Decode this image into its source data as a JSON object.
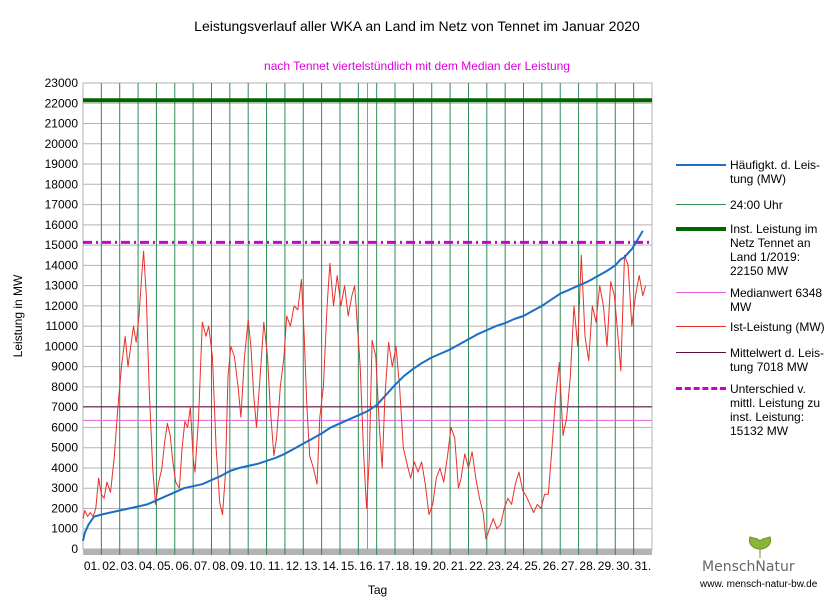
{
  "chart_data": {
    "type": "line",
    "title": "Leistungsverlauf aller WKA an Land im Netz von Tennet im Januar 2020",
    "subtitle": "nach Tennet viertelstündlich mit dem Median der Leistung",
    "xlabel": "Tag",
    "ylabel": "Leistung in MW",
    "ylim": [
      0,
      23000
    ],
    "ytick_step": 1000,
    "xlim": [
      0,
      31
    ],
    "day_labels": [
      "01.",
      "02.",
      "03.",
      "04.",
      "05.",
      "06.",
      "07.",
      "08.",
      "09.",
      "10.",
      "11.",
      "12.",
      "13.",
      "14.",
      "15.",
      "16.",
      "17.",
      "18.",
      "19.",
      "20.",
      "21.",
      "22.",
      "23.",
      "24.",
      "25.",
      "26.",
      "27.",
      "28.",
      "29.",
      "30.",
      "31."
    ],
    "reference_lines": {
      "installed_capacity": 22150,
      "difference_level": 15132,
      "mean": 7018,
      "median": 6348,
      "median_marker_day": 15.5
    },
    "series": [
      {
        "name": "Ist-Leistung (MW)",
        "color": "#e8302a",
        "points": [
          [
            0.0,
            1500
          ],
          [
            0.1,
            1900
          ],
          [
            0.25,
            1600
          ],
          [
            0.4,
            1800
          ],
          [
            0.55,
            1600
          ],
          [
            0.7,
            2000
          ],
          [
            0.85,
            3500
          ],
          [
            1.0,
            2700
          ],
          [
            1.15,
            2500
          ],
          [
            1.3,
            3300
          ],
          [
            1.5,
            2800
          ],
          [
            1.7,
            4500
          ],
          [
            1.9,
            7000
          ],
          [
            2.1,
            9000
          ],
          [
            2.3,
            10500
          ],
          [
            2.45,
            9000
          ],
          [
            2.6,
            10000
          ],
          [
            2.75,
            11000
          ],
          [
            2.9,
            10200
          ],
          [
            3.05,
            11500
          ],
          [
            3.2,
            13500
          ],
          [
            3.3,
            14700
          ],
          [
            3.45,
            12500
          ],
          [
            3.6,
            8000
          ],
          [
            3.8,
            4000
          ],
          [
            3.95,
            2200
          ],
          [
            4.1,
            3200
          ],
          [
            4.3,
            4000
          ],
          [
            4.45,
            5300
          ],
          [
            4.6,
            6200
          ],
          [
            4.75,
            5600
          ],
          [
            4.9,
            4300
          ],
          [
            5.05,
            3300
          ],
          [
            5.25,
            3000
          ],
          [
            5.4,
            5000
          ],
          [
            5.55,
            6300
          ],
          [
            5.7,
            6000
          ],
          [
            5.85,
            7000
          ],
          [
            6.0,
            4500
          ],
          [
            6.1,
            3800
          ],
          [
            6.3,
            6500
          ],
          [
            6.5,
            11200
          ],
          [
            6.7,
            10500
          ],
          [
            6.85,
            11000
          ],
          [
            7.05,
            9500
          ],
          [
            7.25,
            5000
          ],
          [
            7.45,
            2300
          ],
          [
            7.6,
            1700
          ],
          [
            7.75,
            3600
          ],
          [
            7.9,
            8500
          ],
          [
            8.05,
            10000
          ],
          [
            8.25,
            9500
          ],
          [
            8.45,
            8000
          ],
          [
            8.6,
            6500
          ],
          [
            8.8,
            9500
          ],
          [
            9.0,
            11300
          ],
          [
            9.15,
            10000
          ],
          [
            9.3,
            7600
          ],
          [
            9.45,
            6000
          ],
          [
            9.65,
            8500
          ],
          [
            9.85,
            11200
          ],
          [
            10.05,
            9500
          ],
          [
            10.2,
            7000
          ],
          [
            10.4,
            4600
          ],
          [
            10.55,
            5500
          ],
          [
            10.75,
            8000
          ],
          [
            10.95,
            9500
          ],
          [
            11.1,
            11500
          ],
          [
            11.3,
            11000
          ],
          [
            11.5,
            12000
          ],
          [
            11.7,
            11800
          ],
          [
            11.9,
            13300
          ],
          [
            12.05,
            10500
          ],
          [
            12.2,
            7000
          ],
          [
            12.35,
            4600
          ],
          [
            12.55,
            4000
          ],
          [
            12.75,
            3200
          ],
          [
            12.9,
            6500
          ],
          [
            13.1,
            8000
          ],
          [
            13.3,
            12000
          ],
          [
            13.45,
            14100
          ],
          [
            13.65,
            12000
          ],
          [
            13.85,
            13500
          ],
          [
            14.05,
            12000
          ],
          [
            14.25,
            13000
          ],
          [
            14.45,
            11500
          ],
          [
            14.65,
            12500
          ],
          [
            14.8,
            13000
          ],
          [
            14.95,
            11000
          ],
          [
            15.1,
            9000
          ],
          [
            15.3,
            4500
          ],
          [
            15.45,
            2000
          ],
          [
            15.6,
            4500
          ],
          [
            15.75,
            10300
          ],
          [
            15.95,
            9500
          ],
          [
            16.15,
            6000
          ],
          [
            16.3,
            4000
          ],
          [
            16.45,
            7500
          ],
          [
            16.65,
            10200
          ],
          [
            16.85,
            9000
          ],
          [
            17.05,
            10000
          ],
          [
            17.25,
            8000
          ],
          [
            17.45,
            5000
          ],
          [
            17.65,
            4200
          ],
          [
            17.85,
            3500
          ],
          [
            18.05,
            4300
          ],
          [
            18.25,
            3800
          ],
          [
            18.45,
            4300
          ],
          [
            18.65,
            3200
          ],
          [
            18.85,
            1700
          ],
          [
            19.05,
            2200
          ],
          [
            19.25,
            3500
          ],
          [
            19.45,
            4000
          ],
          [
            19.65,
            3300
          ],
          [
            19.85,
            4500
          ],
          [
            20.05,
            6000
          ],
          [
            20.25,
            5500
          ],
          [
            20.45,
            3000
          ],
          [
            20.6,
            3500
          ],
          [
            20.8,
            4700
          ],
          [
            21.0,
            4000
          ],
          [
            21.2,
            4800
          ],
          [
            21.4,
            3500
          ],
          [
            21.6,
            2500
          ],
          [
            21.8,
            1800
          ],
          [
            21.95,
            500
          ],
          [
            22.15,
            1000
          ],
          [
            22.35,
            1500
          ],
          [
            22.55,
            1000
          ],
          [
            22.75,
            1200
          ],
          [
            22.95,
            2000
          ],
          [
            23.15,
            2500
          ],
          [
            23.35,
            2200
          ],
          [
            23.55,
            3200
          ],
          [
            23.75,
            3800
          ],
          [
            23.95,
            2900
          ],
          [
            24.15,
            2600
          ],
          [
            24.35,
            2200
          ],
          [
            24.55,
            1800
          ],
          [
            24.75,
            2200
          ],
          [
            24.95,
            2000
          ],
          [
            25.15,
            2700
          ],
          [
            25.35,
            2700
          ],
          [
            25.55,
            5000
          ],
          [
            25.75,
            7500
          ],
          [
            25.95,
            9200
          ],
          [
            26.15,
            5600
          ],
          [
            26.35,
            6500
          ],
          [
            26.55,
            8500
          ],
          [
            26.75,
            12000
          ],
          [
            26.95,
            10000
          ],
          [
            27.15,
            14500
          ],
          [
            27.35,
            10500
          ],
          [
            27.55,
            9300
          ],
          [
            27.75,
            12000
          ],
          [
            27.95,
            11200
          ],
          [
            28.15,
            13000
          ],
          [
            28.35,
            12000
          ],
          [
            28.55,
            10000
          ],
          [
            28.75,
            13200
          ],
          [
            28.95,
            12500
          ],
          [
            29.15,
            10500
          ],
          [
            29.3,
            8800
          ],
          [
            29.5,
            14500
          ],
          [
            29.7,
            14000
          ],
          [
            29.9,
            11000
          ],
          [
            30.1,
            12500
          ],
          [
            30.3,
            13500
          ],
          [
            30.5,
            12500
          ],
          [
            30.65,
            13000
          ]
        ]
      },
      {
        "name": "Häufigkt. d. Leistung (MW)",
        "color": "#1a6fc4",
        "points": [
          [
            0.0,
            400
          ],
          [
            0.1,
            800
          ],
          [
            0.3,
            1200
          ],
          [
            0.6,
            1600
          ],
          [
            1.0,
            1700
          ],
          [
            1.5,
            1800
          ],
          [
            2.0,
            1900
          ],
          [
            2.5,
            2000
          ],
          [
            3.0,
            2100
          ],
          [
            3.5,
            2200
          ],
          [
            4.0,
            2400
          ],
          [
            4.5,
            2600
          ],
          [
            5.0,
            2800
          ],
          [
            5.5,
            3000
          ],
          [
            6.0,
            3100
          ],
          [
            6.5,
            3200
          ],
          [
            7.0,
            3400
          ],
          [
            7.5,
            3600
          ],
          [
            8.0,
            3850
          ],
          [
            8.5,
            4000
          ],
          [
            9.0,
            4100
          ],
          [
            9.5,
            4200
          ],
          [
            10.0,
            4350
          ],
          [
            10.5,
            4500
          ],
          [
            11.0,
            4700
          ],
          [
            11.5,
            4950
          ],
          [
            12.0,
            5200
          ],
          [
            12.5,
            5450
          ],
          [
            13.0,
            5700
          ],
          [
            13.5,
            6000
          ],
          [
            14.0,
            6200
          ],
          [
            14.5,
            6400
          ],
          [
            15.0,
            6600
          ],
          [
            15.5,
            6800
          ],
          [
            16.0,
            7100
          ],
          [
            16.5,
            7600
          ],
          [
            17.0,
            8100
          ],
          [
            17.5,
            8550
          ],
          [
            18.0,
            8900
          ],
          [
            18.5,
            9200
          ],
          [
            19.0,
            9450
          ],
          [
            19.5,
            9650
          ],
          [
            20.0,
            9850
          ],
          [
            20.5,
            10100
          ],
          [
            21.0,
            10350
          ],
          [
            21.5,
            10600
          ],
          [
            22.0,
            10800
          ],
          [
            22.5,
            11000
          ],
          [
            23.0,
            11150
          ],
          [
            23.5,
            11350
          ],
          [
            24.0,
            11500
          ],
          [
            24.5,
            11750
          ],
          [
            25.0,
            12000
          ],
          [
            25.5,
            12300
          ],
          [
            26.0,
            12600
          ],
          [
            26.5,
            12800
          ],
          [
            27.0,
            13000
          ],
          [
            27.5,
            13200
          ],
          [
            28.0,
            13450
          ],
          [
            28.5,
            13700
          ],
          [
            29.0,
            14000
          ],
          [
            29.3,
            14300
          ],
          [
            29.5,
            14400
          ],
          [
            29.7,
            14600
          ],
          [
            29.9,
            14800
          ],
          [
            30.1,
            15100
          ],
          [
            30.3,
            15400
          ],
          [
            30.5,
            15700
          ]
        ]
      }
    ],
    "legend": [
      {
        "key": "freq",
        "label": "Häufigkt. d. Leis-tung (MW)",
        "color": "#1a6fc4"
      },
      {
        "key": "midnight",
        "label": "24:00 Uhr",
        "color": "#2e8b57"
      },
      {
        "key": "installed",
        "label": "Inst. Leistung im Netz Tennet an Land 1/2019: 22150  MW",
        "color": "#006400"
      },
      {
        "key": "median",
        "label": "Medianwert 6348 MW",
        "color": "#e060e0"
      },
      {
        "key": "actual",
        "label": "Ist-Leistung (MW)",
        "color": "#e8302a"
      },
      {
        "key": "mean",
        "label": "Mittelwert d. Leis-tung 7018 MW",
        "color": "#5a1040"
      },
      {
        "key": "diff",
        "label": "Unterschied v. mittl. Leistung zu inst. Leistung: 15132 MW",
        "color": "#cc00cc"
      }
    ]
  },
  "brand": {
    "name": "MenschNatur",
    "url": "www. mensch-natur-bw.de"
  }
}
